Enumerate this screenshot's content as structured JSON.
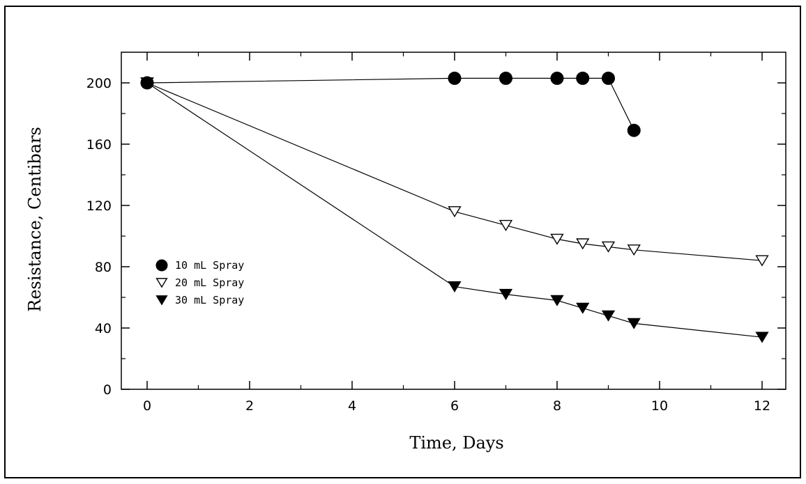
{
  "chart_data": {
    "type": "line",
    "xlabel": "Time, Days",
    "ylabel": "Resistance, Centibars",
    "xlim": [
      -0.5,
      12.4
    ],
    "ylim": [
      0,
      220
    ],
    "xticks": [
      0,
      2,
      4,
      6,
      8,
      10,
      12
    ],
    "yticks": [
      0,
      40,
      80,
      120,
      160,
      200
    ],
    "legend_position": "left-middle",
    "grid": false,
    "series": [
      {
        "name": "10 mL Spray",
        "marker": "filled-circle",
        "color": "#000000",
        "x": [
          0,
          6,
          7,
          8,
          8.5,
          9,
          9.5
        ],
        "y": [
          200,
          203,
          203,
          203,
          203,
          203,
          169
        ]
      },
      {
        "name": "20 mL Spray",
        "marker": "open-triangle-down",
        "color": "#000000",
        "x": [
          0,
          6,
          7,
          8,
          8.5,
          9,
          9.5,
          12
        ],
        "y": [
          200,
          116,
          107,
          98,
          95,
          93,
          91,
          84
        ]
      },
      {
        "name": "30 mL Spray",
        "marker": "filled-triangle-down",
        "color": "#000000",
        "x": [
          0,
          6,
          7,
          8,
          8.5,
          9,
          9.5,
          12
        ],
        "y": [
          200,
          67,
          62,
          58,
          53,
          48,
          43,
          34
        ]
      }
    ]
  }
}
